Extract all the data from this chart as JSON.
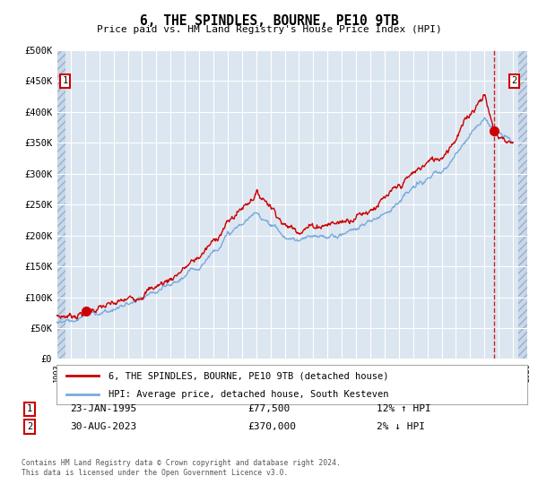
{
  "title": "6, THE SPINDLES, BOURNE, PE10 9TB",
  "subtitle": "Price paid vs. HM Land Registry's House Price Index (HPI)",
  "legend_label1": "6, THE SPINDLES, BOURNE, PE10 9TB (detached house)",
  "legend_label2": "HPI: Average price, detached house, South Kesteven",
  "annotation1": {
    "num": "1",
    "date": "23-JAN-1995",
    "price": "£77,500",
    "pct": "12% ↑ HPI"
  },
  "annotation2": {
    "num": "2",
    "date": "30-AUG-2023",
    "price": "£370,000",
    "pct": "2% ↓ HPI"
  },
  "footnote": "Contains HM Land Registry data © Crown copyright and database right 2024.\nThis data is licensed under the Open Government Licence v3.0.",
  "ylim": [
    0,
    500000
  ],
  "yticks": [
    0,
    50000,
    100000,
    150000,
    200000,
    250000,
    300000,
    350000,
    400000,
    450000,
    500000
  ],
  "ytick_labels": [
    "£0",
    "£50K",
    "£100K",
    "£150K",
    "£200K",
    "£250K",
    "£300K",
    "£350K",
    "£400K",
    "£450K",
    "£500K"
  ],
  "line_color_red": "#cc0000",
  "line_color_blue": "#7aaadd",
  "bg_plot": "#dce6f1",
  "bg_hatch": "#c8d8ea",
  "grid_color": "#ffffff",
  "point1_x": 1995.07,
  "point1_y": 77500,
  "point2_x": 2023.66,
  "point2_y": 370000,
  "xmin": 1993,
  "xmax": 2026,
  "red_base_bp_x": [
    1993.0,
    1994.5,
    1995.07,
    1997,
    1999,
    2001,
    2003,
    2004,
    2005,
    2006,
    2007,
    2007.8,
    2008.5,
    2009.0,
    2010,
    2011,
    2012,
    2013,
    2014,
    2015,
    2016,
    2017,
    2018,
    2019,
    2020,
    2021,
    2022,
    2023.0,
    2023.66,
    2024.0,
    2024.5,
    2025.0
  ],
  "red_base_bp_y": [
    68000,
    72000,
    77500,
    88000,
    105000,
    130000,
    165000,
    190000,
    220000,
    245000,
    268000,
    255000,
    235000,
    215000,
    210000,
    215000,
    218000,
    222000,
    232000,
    242000,
    258000,
    278000,
    300000,
    318000,
    328000,
    358000,
    398000,
    430000,
    370000,
    360000,
    355000,
    350000
  ],
  "blue_base_bp_x": [
    1993.0,
    1994.5,
    1995.07,
    1997,
    1999,
    2001,
    2003,
    2004,
    2005,
    2006,
    2007,
    2007.8,
    2008.5,
    2009.0,
    2010,
    2011,
    2012,
    2013,
    2014,
    2015,
    2016,
    2017,
    2018,
    2019,
    2020,
    2021,
    2022,
    2023.0,
    2023.66,
    2024.0,
    2024.5,
    2025.0
  ],
  "blue_base_bp_y": [
    60000,
    65000,
    70000,
    80000,
    96000,
    118000,
    150000,
    175000,
    200000,
    218000,
    235000,
    225000,
    210000,
    196000,
    192000,
    196000,
    198000,
    202000,
    212000,
    222000,
    238000,
    255000,
    275000,
    292000,
    300000,
    330000,
    368000,
    390000,
    375000,
    365000,
    358000,
    352000
  ]
}
